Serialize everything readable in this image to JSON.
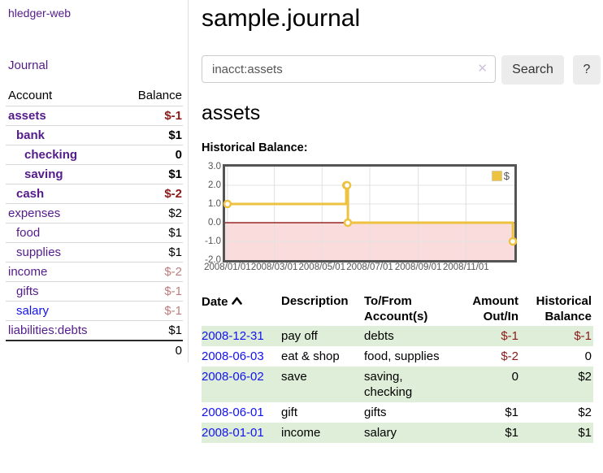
{
  "app": {
    "brand": "hledger-web",
    "nav_journal": "Journal"
  },
  "header": {
    "title": "sample.journal"
  },
  "search": {
    "value": "inacct:assets",
    "clear_icon": "✕",
    "button_label": "Search",
    "help_label": "?"
  },
  "account_page": {
    "heading": "assets",
    "chart_title": "Historical Balance:"
  },
  "sidebar": {
    "header": {
      "account": "Account",
      "balance": "Balance"
    },
    "accounts": [
      {
        "name": "assets",
        "indent": 1,
        "balance": "$-1",
        "bold": true,
        "neg": "strong"
      },
      {
        "name": "bank",
        "indent": 2,
        "balance": "$1",
        "bold": true
      },
      {
        "name": "checking",
        "indent": 3,
        "balance": "0",
        "bold": true
      },
      {
        "name": "saving",
        "indent": 3,
        "balance": "$1",
        "bold": true
      },
      {
        "name": "cash",
        "indent": 2,
        "balance": "$-2",
        "bold": true,
        "neg": "strong"
      },
      {
        "name": "expenses",
        "indent": 1,
        "balance": "$2"
      },
      {
        "name": "food",
        "indent": 2,
        "balance": "$1"
      },
      {
        "name": "supplies",
        "indent": 2,
        "balance": "$1"
      },
      {
        "name": "income",
        "indent": 1,
        "balance": "$-2",
        "neg": "soft"
      },
      {
        "name": "gifts",
        "indent": 2,
        "balance": "$-1",
        "neg": "soft"
      },
      {
        "name": "salary",
        "indent": 2,
        "balance": "$-1",
        "neg": "soft",
        "link": "blue"
      },
      {
        "name": "liabilities:debts",
        "indent": 1,
        "balance": "$1"
      }
    ],
    "total": "0"
  },
  "chart_data": {
    "type": "line",
    "title": "Historical Balance:",
    "legend": "$",
    "legend_position": "top-right",
    "grid": true,
    "ylim": [
      -2,
      3
    ],
    "x_range": [
      "2007-12-29",
      "2009-01-02"
    ],
    "zero_line_color": "#800000",
    "negative_fill": "#fbdcdc",
    "series": [
      {
        "name": "$",
        "color": "#edc240",
        "steps": true,
        "points": [
          {
            "x": "2008-01-01",
            "y": 1
          },
          {
            "x": "2008-06-01",
            "y": 2
          },
          {
            "x": "2008-06-02",
            "y": 2
          },
          {
            "x": "2008-06-03",
            "y": 0
          },
          {
            "x": "2008-12-31",
            "y": -1
          }
        ]
      }
    ],
    "y_ticks": [
      {
        "v": 3,
        "label": "3.0"
      },
      {
        "v": 2,
        "label": "2.0"
      },
      {
        "v": 1,
        "label": "1.0"
      },
      {
        "v": 0,
        "label": "0.0"
      },
      {
        "v": -1,
        "label": "-1.0"
      },
      {
        "v": -2,
        "label": "-2.0"
      }
    ],
    "x_ticks": [
      {
        "x": "2008-01-01",
        "label": "2008/01/01"
      },
      {
        "x": "2008-03-01",
        "label": "2008/03/01"
      },
      {
        "x": "2008-05-01",
        "label": "2008/05/01"
      },
      {
        "x": "2008-07-01",
        "label": "2008/07/01"
      },
      {
        "x": "2008-09-01",
        "label": "2008/09/01"
      },
      {
        "x": "2008-11-01",
        "label": "2008/11/01"
      }
    ]
  },
  "register": {
    "columns": [
      {
        "label": "Date",
        "sorted": "asc"
      },
      {
        "label": "Description"
      },
      {
        "label": "To/From Account(s)"
      },
      {
        "label": "Amount Out/In"
      },
      {
        "label": "Historical Balance"
      }
    ],
    "rows": [
      {
        "date": "2008-12-31",
        "description": "pay off",
        "accounts": "debts",
        "amount": "$-1",
        "amount_neg": true,
        "balance": "$-1",
        "balance_neg": true
      },
      {
        "date": "2008-06-03",
        "description": "eat & shop",
        "accounts": "food, supplies",
        "amount": "$-2",
        "amount_neg": true,
        "balance": "0"
      },
      {
        "date": "2008-06-02",
        "description": "save",
        "accounts": "saving, checking",
        "amount": "0",
        "balance": "$2"
      },
      {
        "date": "2008-06-01",
        "description": "gift",
        "accounts": "gifts",
        "amount": "$1",
        "balance": "$2"
      },
      {
        "date": "2008-01-01",
        "description": "income",
        "accounts": "salary",
        "amount": "$1",
        "balance": "$1"
      }
    ]
  }
}
